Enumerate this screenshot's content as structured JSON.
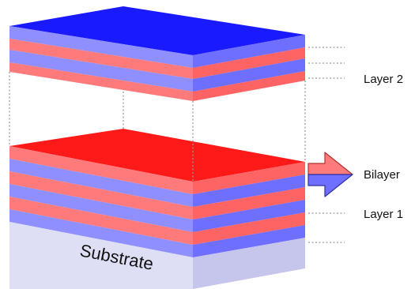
{
  "labels": {
    "layer2": "Layer 2",
    "bilayer": "Bilayer",
    "layer1": "Layer 1",
    "substrate": "Substrate"
  },
  "colors": {
    "blue_top": "#1a1aff",
    "red_top": "#ff1a1a",
    "light_red": "#ff7b7b",
    "red_band": "#ff6464",
    "light_blue": "#8f8fff",
    "blue_band": "#6e6eff",
    "substrate_front": "#dedef4",
    "substrate_side": "#c6c6ec"
  }
}
